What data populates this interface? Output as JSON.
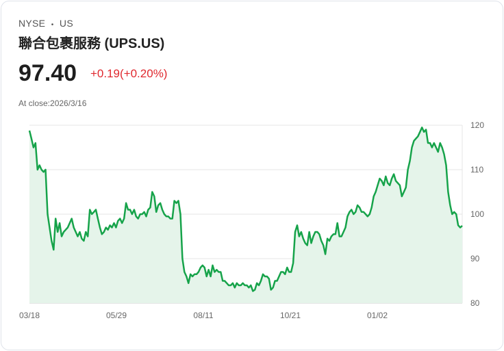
{
  "header": {
    "exchange": "NYSE",
    "dot": "•",
    "region": "US",
    "name": "聯合包裹服務 (UPS.US)",
    "price": "97.40",
    "change": "+0.19(+0.20%)",
    "close_label": "At close:2026/3/16"
  },
  "colors": {
    "line": "#16a34a",
    "fill": "#e5f4ea",
    "up": "#e0282e"
  },
  "chart_data": {
    "type": "area",
    "title": "",
    "xlabel": "",
    "ylabel": "",
    "ylim": [
      80,
      120
    ],
    "y_ticks": [
      "120",
      "110",
      "100",
      "90",
      "80"
    ],
    "x_labels": [
      "03/18",
      "05/29",
      "08/11",
      "10/21",
      "01/02"
    ],
    "values": [
      118.8,
      117,
      115,
      116,
      110,
      111,
      110,
      109.5,
      110,
      100,
      97,
      94,
      92,
      99,
      96,
      98,
      95,
      96,
      96.5,
      97,
      98,
      99,
      97,
      96,
      95,
      96,
      94.5,
      94,
      96,
      95,
      101,
      100,
      100.5,
      101,
      99,
      97,
      95.5,
      96,
      97,
      96.5,
      97.5,
      97,
      98,
      97,
      98.5,
      99,
      98,
      99,
      102.5,
      101,
      101,
      100,
      101,
      99.5,
      99,
      100,
      100,
      100.5,
      99.5,
      101,
      101.5,
      105,
      104,
      100.5,
      102,
      102.5,
      101,
      100,
      99.5,
      99.5,
      99,
      99,
      103,
      102.5,
      103,
      100,
      90,
      87,
      86,
      84.5,
      86.5,
      86,
      86.5,
      86.5,
      87,
      88,
      88.5,
      88,
      86,
      87.5,
      86,
      88.5,
      87,
      87.5,
      87,
      87,
      85,
      85,
      84.5,
      84,
      84,
      84.5,
      83.5,
      84.5,
      84,
      84,
      84.5,
      84,
      84,
      83.5,
      84,
      82.7,
      83,
      84.5,
      84,
      85,
      86.5,
      86,
      86,
      85.5,
      83,
      83.5,
      85,
      85,
      86,
      87,
      87,
      86.5,
      88,
      87,
      87,
      89,
      96,
      97.5,
      95,
      96,
      94.5,
      93.5,
      93,
      96,
      93.5,
      95,
      96,
      96,
      95.5,
      94,
      93,
      91,
      94.5,
      94,
      95,
      95.5,
      95.5,
      98,
      95,
      95,
      96,
      97,
      99.5,
      100.5,
      101,
      100,
      100.5,
      102,
      101.5,
      100.5,
      100.5,
      100,
      99.5,
      100,
      101.5,
      104,
      105,
      106.5,
      108,
      107.5,
      106.5,
      108.5,
      107,
      106.5,
      108,
      109,
      107.5,
      107,
      106.5,
      104,
      105,
      106,
      110,
      112,
      115,
      116.5,
      117,
      117.5,
      118.5,
      119.5,
      118.5,
      119,
      116,
      116,
      115,
      116,
      115,
      114,
      116,
      115,
      113.5,
      111,
      105,
      102,
      100,
      100.5,
      100,
      97.5,
      97,
      97.4
    ]
  }
}
